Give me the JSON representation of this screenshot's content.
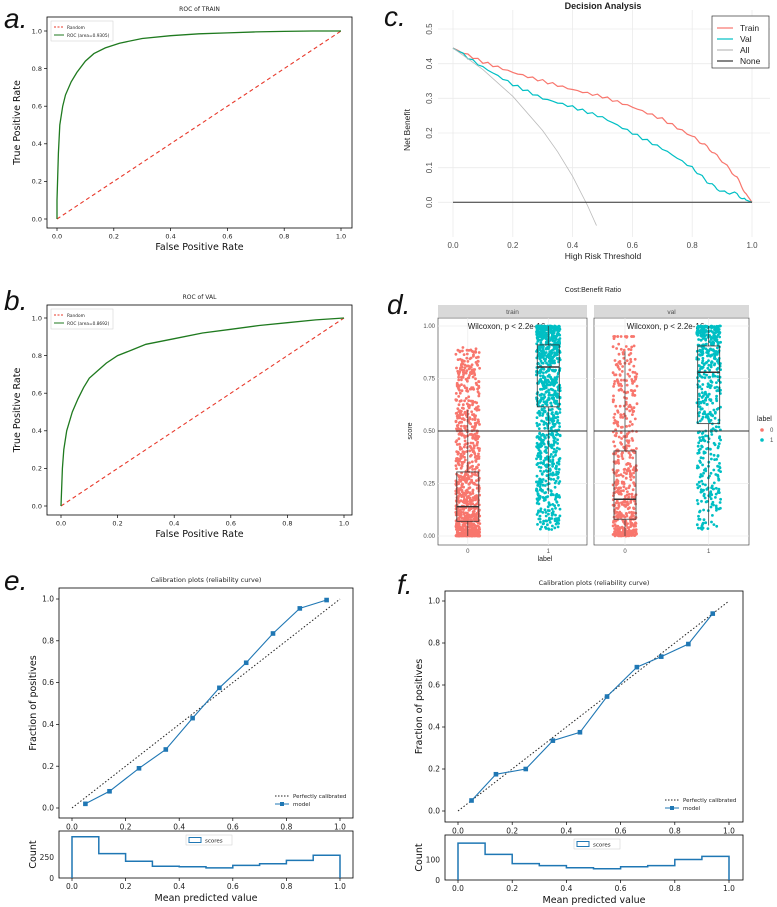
{
  "panels": {
    "a": {
      "letter": "a."
    },
    "b": {
      "letter": "b."
    },
    "c": {
      "letter": "c."
    },
    "d": {
      "letter": "d."
    },
    "e": {
      "letter": "e."
    },
    "f": {
      "letter": "f."
    }
  },
  "chart_data": [
    {
      "id": "a",
      "type": "line",
      "title": "ROC of TRAIN",
      "xlabel": "False Positive Rate",
      "ylabel": "True Positive Rate",
      "xlim": [
        0,
        1
      ],
      "ylim": [
        0,
        1
      ],
      "xticks": [
        "0.0",
        "0.2",
        "0.4",
        "0.6",
        "0.8",
        "1.0"
      ],
      "yticks": [
        "0.0",
        "0.2",
        "0.4",
        "0.6",
        "0.8",
        "1.0"
      ],
      "legend": [
        "Random",
        "ROC (area=0.9305)"
      ],
      "colors": {
        "random": "#e8382a",
        "roc": "#1f7a1f"
      },
      "series": [
        {
          "name": "Random",
          "x": [
            0,
            1
          ],
          "y": [
            0,
            1
          ]
        },
        {
          "name": "ROC (area=0.9305)",
          "x": [
            0,
            0,
            0.005,
            0.01,
            0.02,
            0.03,
            0.05,
            0.07,
            0.1,
            0.13,
            0.17,
            0.22,
            0.3,
            0.4,
            0.5,
            0.6,
            0.7,
            0.8,
            0.9,
            1.0
          ],
          "y": [
            0,
            0.1,
            0.35,
            0.5,
            0.6,
            0.66,
            0.73,
            0.78,
            0.84,
            0.88,
            0.91,
            0.935,
            0.96,
            0.975,
            0.985,
            0.99,
            0.995,
            0.998,
            1.0,
            1.0
          ]
        }
      ]
    },
    {
      "id": "b",
      "type": "line",
      "title": "ROC of VAL",
      "xlabel": "False Positive Rate",
      "ylabel": "True Positive Rate",
      "xlim": [
        0,
        1
      ],
      "ylim": [
        0,
        1
      ],
      "xticks": [
        "0.0",
        "0.2",
        "0.4",
        "0.6",
        "0.8",
        "1.0"
      ],
      "yticks": [
        "0.0",
        "0.2",
        "0.4",
        "0.6",
        "0.8",
        "1.0"
      ],
      "legend": [
        "Random",
        "ROC (area=0.8692)"
      ],
      "colors": {
        "random": "#e8382a",
        "roc": "#1f7a1f"
      },
      "series": [
        {
          "name": "Random",
          "x": [
            0,
            1
          ],
          "y": [
            0,
            1
          ]
        },
        {
          "name": "ROC (area=0.8692)",
          "x": [
            0,
            0.005,
            0.01,
            0.02,
            0.04,
            0.06,
            0.08,
            0.1,
            0.13,
            0.16,
            0.2,
            0.25,
            0.3,
            0.4,
            0.5,
            0.6,
            0.7,
            0.8,
            0.9,
            1.0
          ],
          "y": [
            0,
            0.2,
            0.3,
            0.4,
            0.5,
            0.57,
            0.63,
            0.68,
            0.72,
            0.76,
            0.8,
            0.83,
            0.86,
            0.89,
            0.92,
            0.94,
            0.96,
            0.975,
            0.99,
            1.0
          ]
        }
      ]
    },
    {
      "id": "c",
      "type": "line",
      "title": "Decision Analysis",
      "xlabel": "High Risk Threshold",
      "ylabel": "Net Benefit",
      "xlim": [
        0,
        1
      ],
      "ylim": [
        -0.1,
        0.5
      ],
      "xticks": [
        "0.0",
        "0.2",
        "0.4",
        "0.6",
        "0.8",
        "1.0"
      ],
      "yticks": [
        "0.0",
        "0.1",
        "0.2",
        "0.3",
        "0.4",
        "0.5"
      ],
      "legend": [
        "Train",
        "Val",
        "All",
        "None"
      ],
      "colors": {
        "Train": "#f8766d",
        "Val": "#00bfc4",
        "All": "#bbbbbb",
        "None": "#333333"
      },
      "series": [
        {
          "name": "Train",
          "x": [
            0,
            0.1,
            0.2,
            0.3,
            0.4,
            0.5,
            0.6,
            0.7,
            0.8,
            0.85,
            0.9,
            0.95,
            0.98,
            1.0
          ],
          "y": [
            0.445,
            0.405,
            0.375,
            0.35,
            0.325,
            0.305,
            0.275,
            0.24,
            0.19,
            0.16,
            0.12,
            0.07,
            0.025,
            0.0
          ]
        },
        {
          "name": "Val",
          "x": [
            0,
            0.1,
            0.2,
            0.3,
            0.4,
            0.5,
            0.6,
            0.7,
            0.8,
            0.85,
            0.9,
            0.95,
            0.97,
            1.0
          ],
          "y": [
            0.445,
            0.39,
            0.34,
            0.3,
            0.275,
            0.245,
            0.2,
            0.155,
            0.1,
            0.06,
            0.03,
            0.025,
            0.01,
            0.0
          ]
        },
        {
          "name": "All",
          "x": [
            0,
            0.1,
            0.2,
            0.3,
            0.35,
            0.4,
            0.45,
            0.48
          ],
          "y": [
            0.445,
            0.383,
            0.306,
            0.207,
            0.146,
            0.075,
            -0.009,
            -0.067
          ]
        },
        {
          "name": "None",
          "x": [
            0,
            1
          ],
          "y": [
            0,
            0
          ]
        }
      ]
    },
    {
      "id": "d",
      "type": "scatter",
      "title": "Cost:Benefit Ratio",
      "xlabel": "label",
      "ylabel": "score",
      "facets": [
        "train",
        "val"
      ],
      "annotations": [
        "Wilcoxon, p < 2.2e-16",
        "Wilcoxon, p < 2.2e-16"
      ],
      "categories": [
        "0",
        "1"
      ],
      "yticks": [
        "0.00",
        "0.25",
        "0.50",
        "0.75",
        "1.00"
      ],
      "ylim": [
        0,
        1
      ],
      "hline": 0.5,
      "legend_title": "label",
      "legend": [
        "0",
        "1"
      ],
      "colors": {
        "0": "#f8766d",
        "1": "#00bfc4"
      },
      "boxes": [
        {
          "facet": "train",
          "label": "0",
          "min": 0.0,
          "q1": 0.07,
          "median": 0.14,
          "q3": 0.305,
          "max": 0.6
        },
        {
          "facet": "train",
          "label": "1",
          "min": 0.2,
          "q1": 0.615,
          "median": 0.805,
          "q3": 0.91,
          "max": 1.0
        },
        {
          "facet": "val",
          "label": "0",
          "min": 0.0,
          "q1": 0.08,
          "median": 0.175,
          "q3": 0.405,
          "max": 0.88
        },
        {
          "facet": "val",
          "label": "1",
          "min": 0.05,
          "q1": 0.535,
          "median": 0.78,
          "q3": 0.905,
          "max": 1.0
        }
      ]
    },
    {
      "id": "e",
      "type": "line",
      "title": "Calibration plots  (reliability curve)",
      "xlabel": "Mean predicted value",
      "ylabel": "Fraction of positives",
      "xlim": [
        0,
        1
      ],
      "ylim": [
        0,
        1
      ],
      "xticks": [
        "0.0",
        "0.2",
        "0.4",
        "0.6",
        "0.8",
        "1.0"
      ],
      "yticks": [
        "0.0",
        "0.2",
        "0.4",
        "0.6",
        "0.8",
        "1.0"
      ],
      "legend": [
        "Perfectly calibrated",
        "model"
      ],
      "colors": {
        "model": "#1f77b4",
        "perfect": "#222222"
      },
      "series": [
        {
          "name": "Perfectly calibrated",
          "x": [
            0,
            1
          ],
          "y": [
            0,
            1
          ]
        },
        {
          "name": "model",
          "x": [
            0.05,
            0.14,
            0.25,
            0.35,
            0.45,
            0.55,
            0.65,
            0.75,
            0.85,
            0.95
          ],
          "y": [
            0.02,
            0.08,
            0.19,
            0.28,
            0.43,
            0.575,
            0.695,
            0.835,
            0.955,
            0.995
          ]
        }
      ],
      "hist": {
        "label": "scores",
        "ylabel": "Count",
        "yticks": [
          "0",
          "250"
        ],
        "ymax": 500,
        "counts": [
          490,
          290,
          200,
          140,
          135,
          120,
          150,
          170,
          210,
          270
        ]
      }
    },
    {
      "id": "f",
      "type": "line",
      "title": "Calibration plots  (reliability curve)",
      "xlabel": "Mean predicted value",
      "ylabel": "Fraction of positives",
      "xlim": [
        0,
        1
      ],
      "ylim": [
        0,
        1
      ],
      "xticks": [
        "0.0",
        "0.2",
        "0.4",
        "0.6",
        "0.8",
        "1.0"
      ],
      "yticks": [
        "0.0",
        "0.2",
        "0.4",
        "0.6",
        "0.8",
        "1.0"
      ],
      "legend": [
        "Perfectly calibrated",
        "model"
      ],
      "colors": {
        "model": "#1f77b4",
        "perfect": "#222222"
      },
      "series": [
        {
          "name": "Perfectly calibrated",
          "x": [
            0,
            1
          ],
          "y": [
            0,
            1
          ]
        },
        {
          "name": "model",
          "x": [
            0.05,
            0.14,
            0.25,
            0.35,
            0.45,
            0.55,
            0.66,
            0.75,
            0.85,
            0.94
          ],
          "y": [
            0.05,
            0.175,
            0.2,
            0.335,
            0.375,
            0.545,
            0.685,
            0.735,
            0.795,
            0.94
          ]
        }
      ],
      "hist": {
        "label": "scores",
        "ylabel": "Count",
        "yticks": [
          "0",
          "100"
        ],
        "ymax": 200,
        "counts": [
          180,
          125,
          80,
          70,
          60,
          55,
          65,
          70,
          100,
          115
        ]
      }
    }
  ]
}
